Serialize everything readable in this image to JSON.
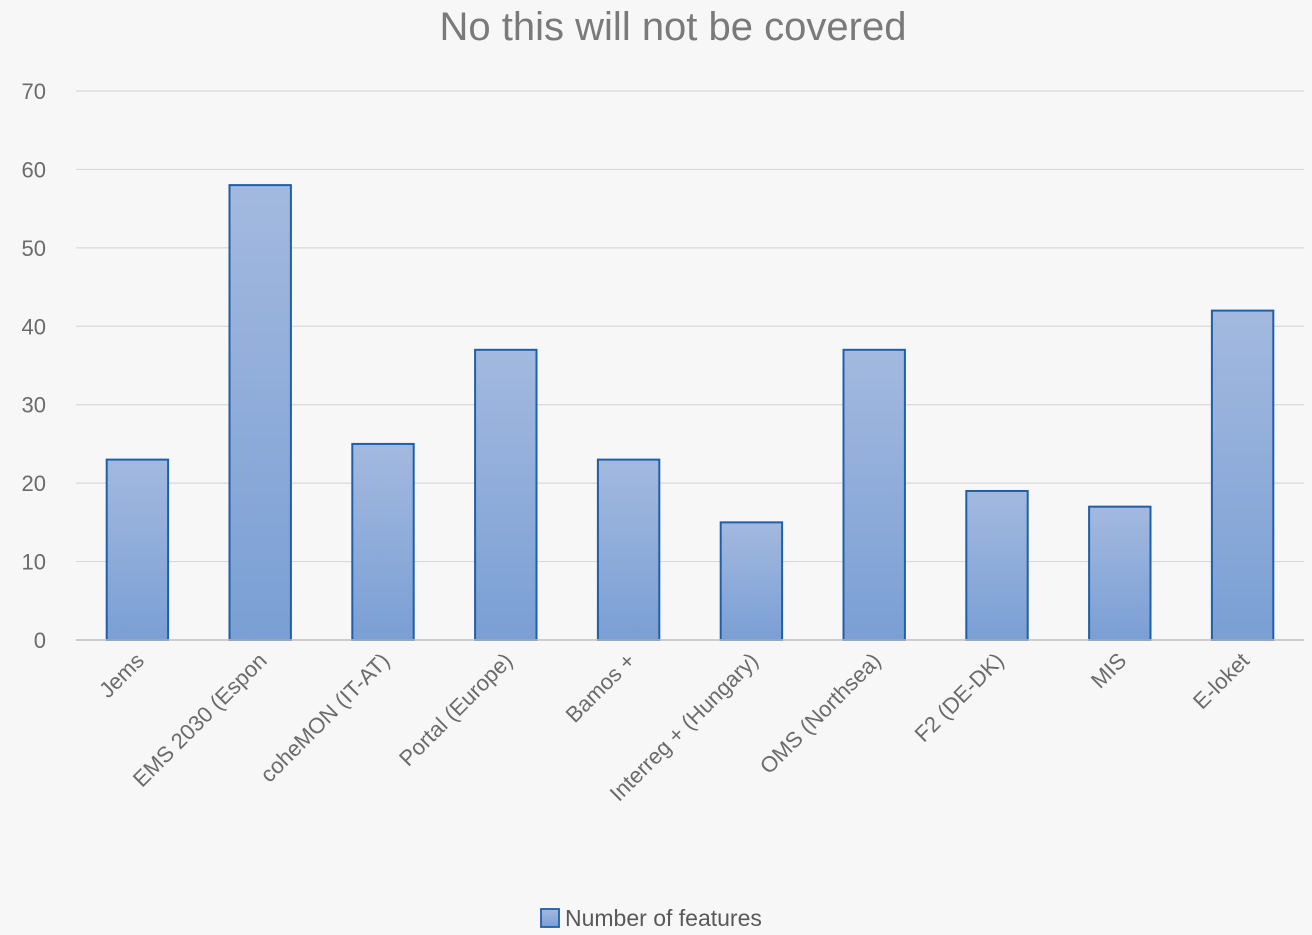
{
  "chart_data": {
    "type": "bar",
    "title": "No this will not be covered",
    "categories": [
      "Jems",
      "EMS 2030 (Espon",
      "coheMON (IT-AT)",
      "Portal (Europe)",
      "Bamos +",
      "Interreg + (Hungary)",
      "OMS (Northsea)",
      "F2 (DE-DK)",
      "MIS",
      "E-loket"
    ],
    "series": [
      {
        "name": "Number of features",
        "values": [
          23,
          58,
          25,
          37,
          23,
          15,
          37,
          19,
          17,
          42
        ]
      }
    ],
    "ylim": [
      0,
      70
    ],
    "yticks": [
      0,
      10,
      20,
      30,
      40,
      50,
      60,
      70
    ],
    "grid": true,
    "legend_position": "bottom",
    "colors": {
      "bar_top": "#a3b9df",
      "bar_bottom": "#7a9fd4",
      "bar_border": "#1f5fa8"
    }
  }
}
